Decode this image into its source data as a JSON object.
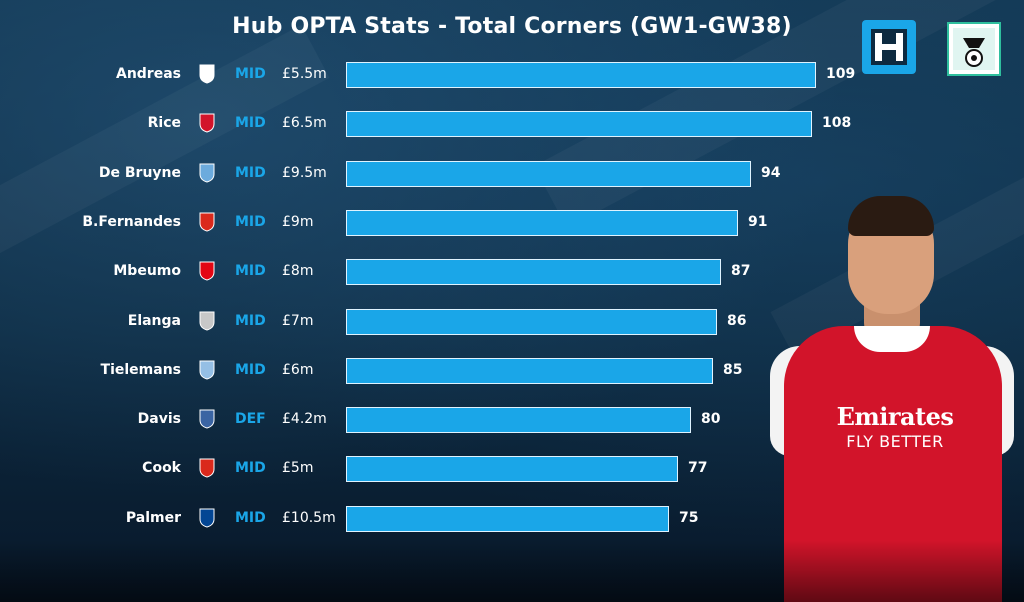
{
  "title": "Hub OPTA Stats - Total Corners (GW1-GW38)",
  "chart_data": {
    "type": "bar",
    "orientation": "horizontal",
    "title": "Hub OPTA Stats - Total Corners (GW1-GW38)",
    "xlabel": "",
    "ylabel": "",
    "grid": false,
    "categories": [
      "Andreas",
      "Rice",
      "De Bruyne",
      "B.Fernandes",
      "Mbeumo",
      "Elanga",
      "Tielemans",
      "Davis",
      "Cook",
      "Palmer"
    ],
    "values": [
      109,
      108,
      94,
      91,
      87,
      86,
      85,
      80,
      77,
      75
    ],
    "xlim": [
      0,
      109
    ],
    "players": [
      {
        "name": "Andreas",
        "club_icon": "fulham-crest-icon",
        "position": "MID",
        "price": "£5.5m",
        "corners": 109
      },
      {
        "name": "Rice",
        "club_icon": "arsenal-crest-icon",
        "position": "MID",
        "price": "£6.5m",
        "corners": 108
      },
      {
        "name": "De Bruyne",
        "club_icon": "man-city-crest-icon",
        "position": "MID",
        "price": "£9.5m",
        "corners": 94
      },
      {
        "name": "B.Fernandes",
        "club_icon": "man-utd-crest-icon",
        "position": "MID",
        "price": "£9m",
        "corners": 91
      },
      {
        "name": "Mbeumo",
        "club_icon": "brentford-crest-icon",
        "position": "MID",
        "price": "£8m",
        "corners": 87
      },
      {
        "name": "Elanga",
        "club_icon": "newcastle-crest-icon",
        "position": "MID",
        "price": "£7m",
        "corners": 86
      },
      {
        "name": "Tielemans",
        "club_icon": "aston-villa-crest-icon",
        "position": "MID",
        "price": "£6m",
        "corners": 85
      },
      {
        "name": "Davis",
        "club_icon": "ipswich-crest-icon",
        "position": "DEF",
        "price": "£4.2m",
        "corners": 80
      },
      {
        "name": "Cook",
        "club_icon": "bournemouth-crest-icon",
        "position": "MID",
        "price": "£5m",
        "corners": 77
      },
      {
        "name": "Palmer",
        "club_icon": "chelsea-crest-icon",
        "position": "MID",
        "price": "£10.5m",
        "corners": 75
      }
    ]
  },
  "colors": {
    "bar": "#1aa6e8",
    "position_text": "#1aa6e8",
    "background": "#0d2a40",
    "text": "#ffffff"
  },
  "crest_colors": {
    "fulham-crest-icon": "#ffffff",
    "arsenal-crest-icon": "#d2142a",
    "man-city-crest-icon": "#6cabdd",
    "man-utd-crest-icon": "#da291c",
    "brentford-crest-icon": "#e30613",
    "newcastle-crest-icon": "#c8c8c8",
    "aston-villa-crest-icon": "#95bfe5",
    "ipswich-crest-icon": "#3a64a3",
    "bournemouth-crest-icon": "#da291c",
    "chelsea-crest-icon": "#034694"
  },
  "branding": {
    "logo_left_icon": "fantasy-football-hub-logo-icon",
    "logo_right_icon": "fantasy-football-badge-icon"
  },
  "player_image": {
    "icon": "player-photo",
    "sponsor_line1": "Emirates",
    "sponsor_line2": "FLY BETTER"
  }
}
